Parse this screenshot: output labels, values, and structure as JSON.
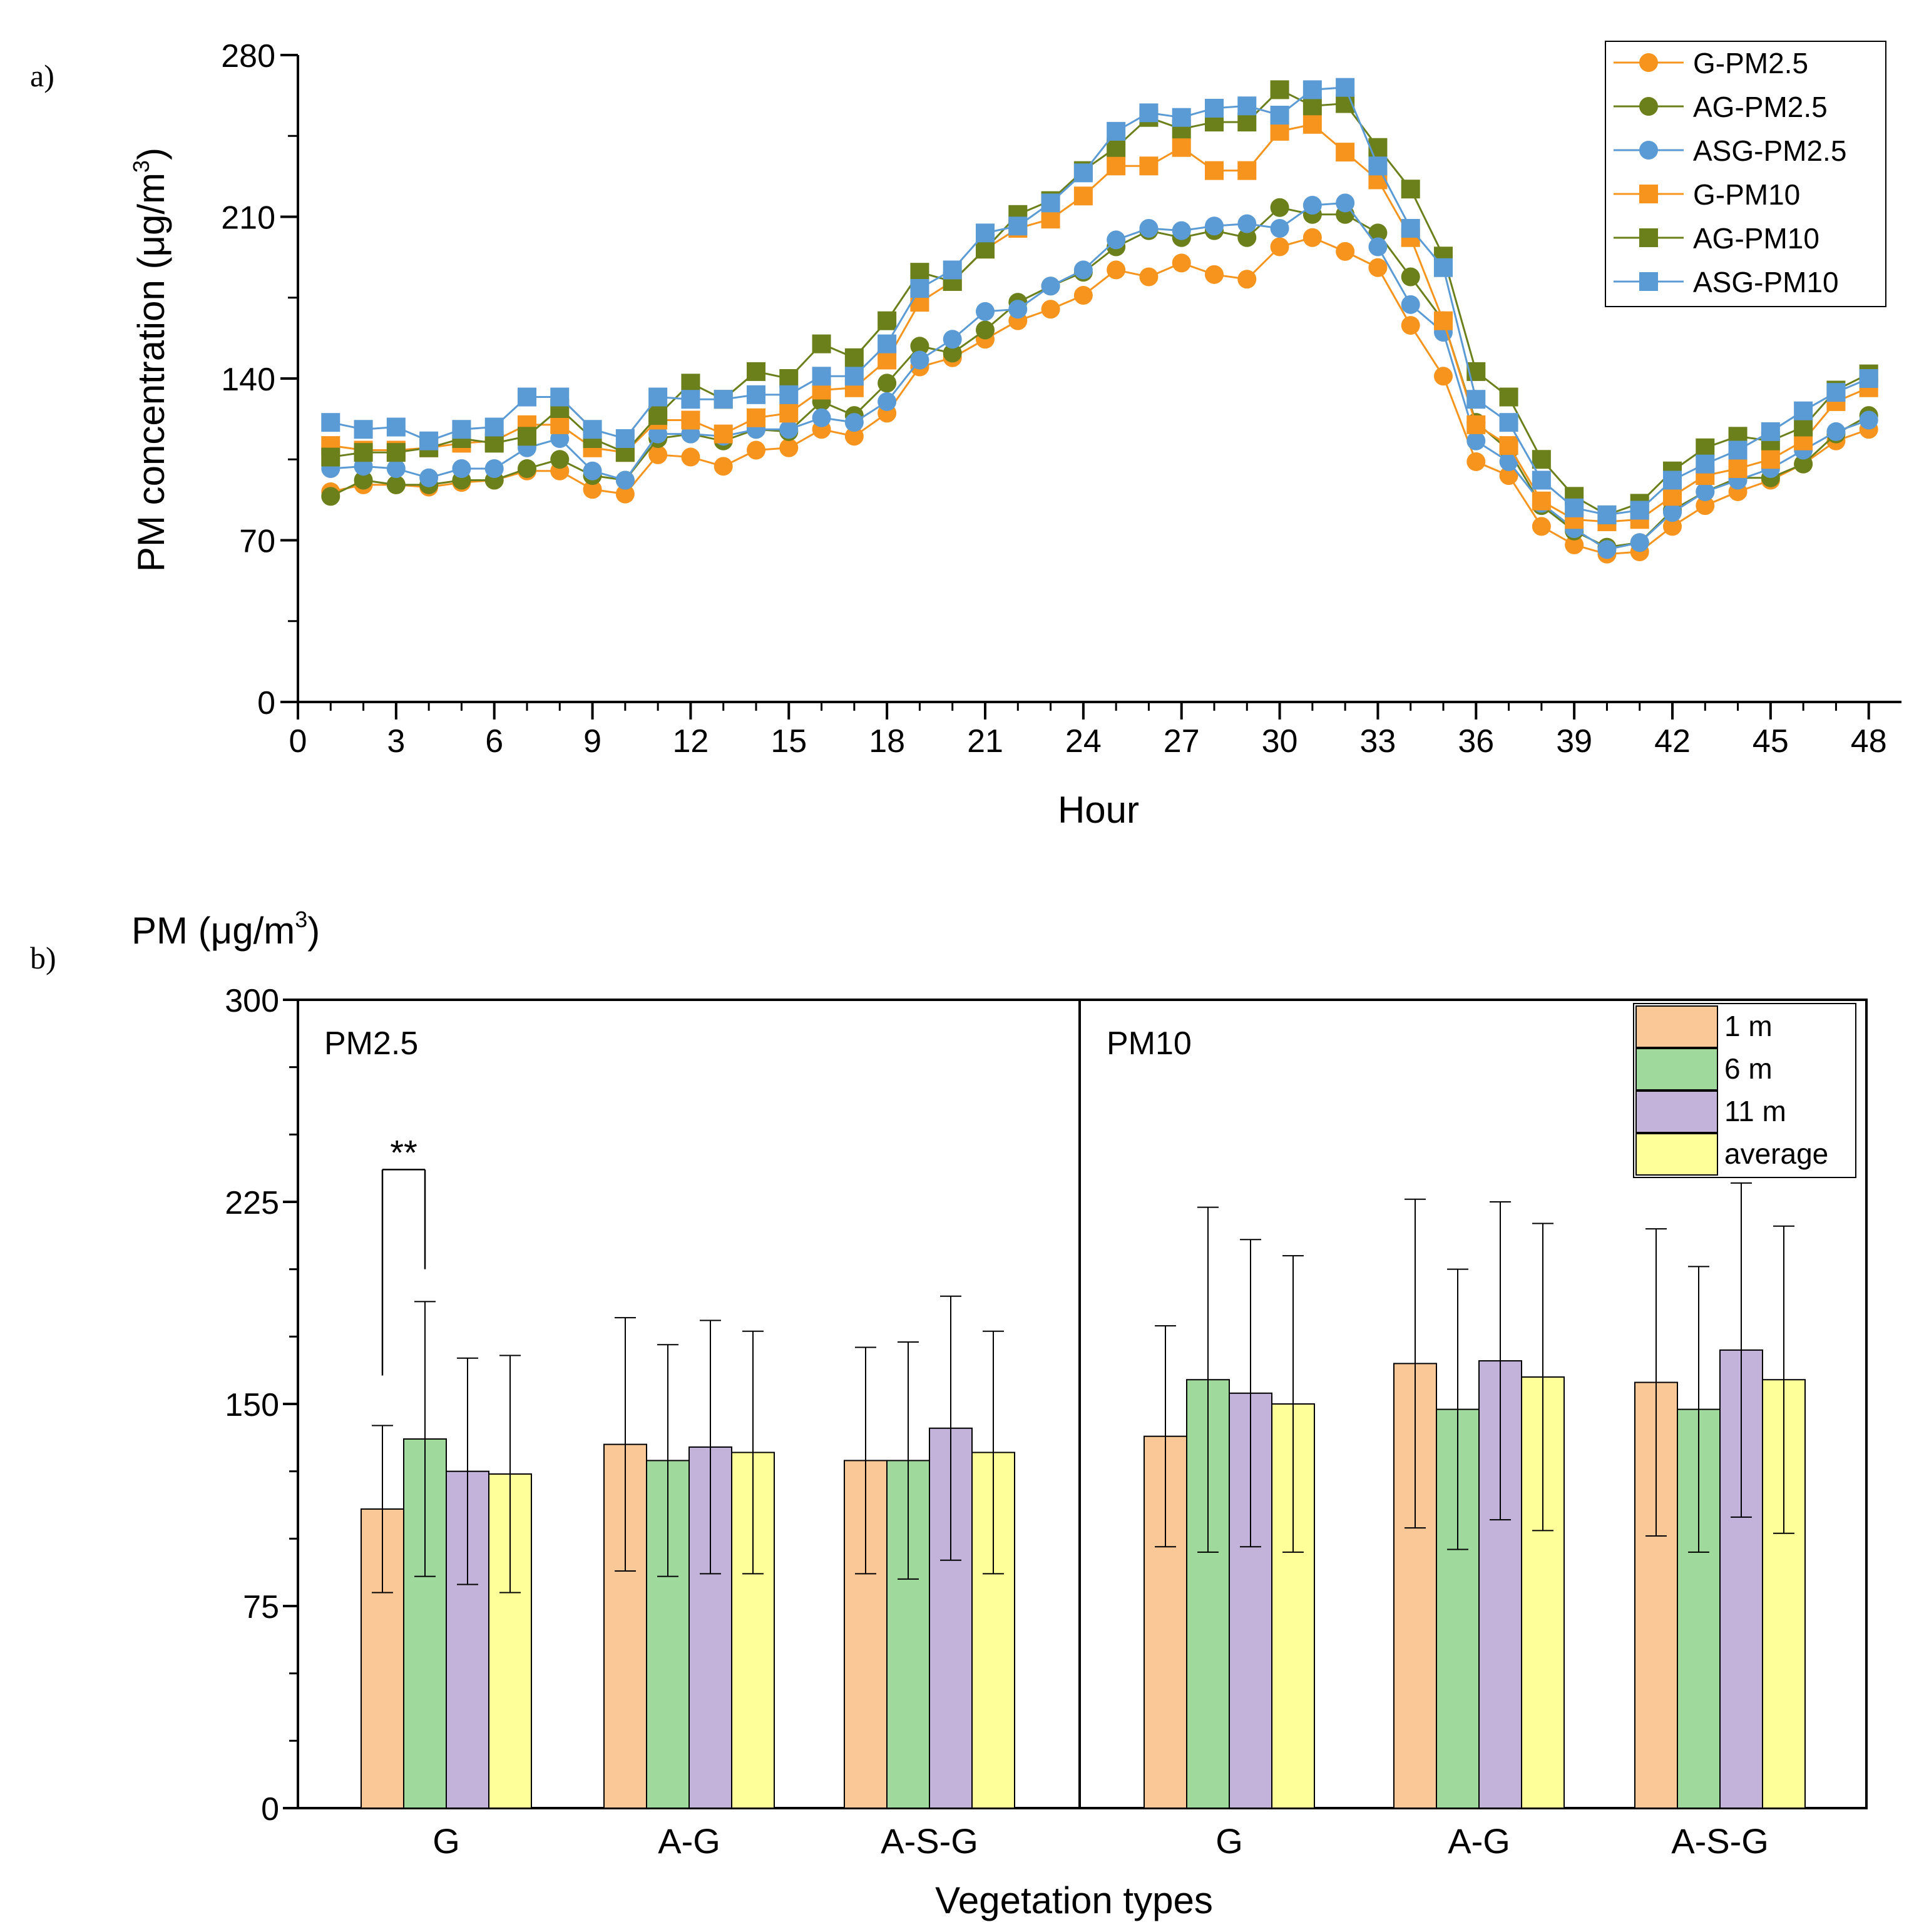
{
  "colors": {
    "orange": "#F7941D",
    "olive": "#6B7F1A",
    "blue": "#5B9BD5",
    "bar_1m": "#F9C896",
    "bar_6m": "#A0D99C",
    "bar_11m": "#C3B2D9",
    "bar_avg": "#FFFF99",
    "axis": "#000000"
  },
  "chart_data": [
    {
      "panel_label": "a)",
      "type": "line",
      "title": "",
      "xlabel": "Hour",
      "ylabel": "PM concentration (μg/m",
      "ylabel_sup": "3",
      "ylabel_close": ")",
      "xlim": [
        0,
        49
      ],
      "ylim": [
        0,
        280
      ],
      "xticks": [
        0,
        3,
        6,
        9,
        12,
        15,
        18,
        21,
        24,
        27,
        30,
        33,
        36,
        39,
        42,
        45,
        48
      ],
      "xtick_labels": [
        "0",
        "3",
        "6",
        "9",
        "12",
        "15",
        "18",
        "21",
        "24",
        "27",
        "30",
        "33",
        "36",
        "39",
        "42",
        "45",
        "48"
      ],
      "yticks": [
        0,
        70,
        140,
        210,
        280
      ],
      "ytick_labels": [
        "0",
        "70",
        "140",
        "210",
        "280"
      ],
      "legend_position": "top-right",
      "x": [
        1,
        2,
        3,
        4,
        5,
        6,
        7,
        8,
        9,
        10,
        11,
        12,
        13,
        14,
        15,
        16,
        17,
        18,
        19,
        20,
        21,
        22,
        23,
        24,
        25,
        26,
        27,
        28,
        29,
        30,
        31,
        32,
        33,
        34,
        35,
        36,
        37,
        38,
        39,
        40,
        41,
        42,
        43,
        44,
        45,
        46,
        47,
        48
      ],
      "series": [
        {
          "name": "G-PM2.5",
          "marker": "circle",
          "color": "orange",
          "values": [
            91,
            94,
            94,
            93,
            95,
            96,
            100,
            100,
            92,
            90,
            107,
            106,
            102,
            109,
            110,
            118,
            115,
            125,
            145,
            149,
            157,
            165,
            170,
            176,
            187,
            184,
            190,
            185,
            183,
            197,
            201,
            195,
            188,
            163,
            141,
            104,
            98,
            76,
            68,
            64,
            65,
            76,
            85,
            91,
            96,
            103,
            113,
            118
          ]
        },
        {
          "name": "AG-PM2.5",
          "marker": "circle",
          "color": "olive",
          "values": [
            89,
            96,
            94,
            94,
            96,
            96,
            101,
            105,
            98,
            96,
            114,
            116,
            113,
            118,
            117,
            130,
            124,
            138,
            154,
            151,
            161,
            173,
            180,
            186,
            197,
            204,
            201,
            204,
            201,
            214,
            211,
            211,
            203,
            184,
            165,
            121,
            109,
            85,
            74,
            67,
            69,
            83,
            91,
            97,
            97,
            103,
            116,
            124
          ]
        },
        {
          "name": "ASG-PM2.5",
          "marker": "circle",
          "color": "blue",
          "values": [
            101,
            102,
            101,
            97,
            101,
            101,
            110,
            114,
            100,
            96,
            116,
            116,
            115,
            118,
            118,
            123,
            121,
            130,
            148,
            157,
            169,
            170,
            180,
            187,
            200,
            205,
            204,
            206,
            207,
            205,
            215,
            216,
            197,
            172,
            160,
            113,
            104,
            86,
            75,
            66,
            69,
            82,
            91,
            96,
            101,
            109,
            117,
            122
          ]
        },
        {
          "name": "G-PM10",
          "marker": "square",
          "color": "orange",
          "values": [
            111,
            109,
            109,
            110,
            112,
            113,
            120,
            120,
            110,
            108,
            122,
            122,
            116,
            123,
            125,
            135,
            136,
            148,
            173,
            182,
            196,
            205,
            209,
            219,
            232,
            232,
            240,
            230,
            230,
            247,
            250,
            238,
            226,
            201,
            165,
            120,
            111,
            87,
            79,
            78,
            79,
            89,
            98,
            101,
            105,
            113,
            130,
            136
          ]
        },
        {
          "name": "AG-PM10",
          "marker": "square",
          "color": "olive",
          "values": [
            106,
            108,
            108,
            110,
            114,
            112,
            115,
            127,
            114,
            108,
            124,
            138,
            131,
            143,
            140,
            155,
            149,
            165,
            186,
            182,
            196,
            211,
            217,
            230,
            240,
            253,
            248,
            251,
            251,
            265,
            258,
            259,
            240,
            222,
            193,
            143,
            132,
            105,
            89,
            81,
            86,
            100,
            110,
            115,
            113,
            119,
            135,
            142
          ]
        },
        {
          "name": "ASG-PM10",
          "marker": "square",
          "color": "blue",
          "values": [
            121,
            118,
            119,
            113,
            118,
            119,
            132,
            132,
            118,
            114,
            132,
            131,
            131,
            133,
            133,
            141,
            141,
            155,
            179,
            187,
            203,
            206,
            216,
            229,
            247,
            255,
            253,
            257,
            258,
            254,
            265,
            266,
            232,
            205,
            188,
            131,
            121,
            96,
            84,
            81,
            83,
            96,
            103,
            109,
            117,
            126,
            134,
            140
          ]
        }
      ]
    },
    {
      "panel_label": "b)",
      "type": "bar",
      "title": "",
      "xlabel": "Vegetation types",
      "ylabel": "PM (μg/m",
      "ylabel_sup": "3",
      "ylabel_close": ")",
      "ylim": [
        0,
        300
      ],
      "yticks": [
        0,
        75,
        150,
        225,
        300
      ],
      "ytick_labels": [
        "0",
        "75",
        "150",
        "225",
        "300"
      ],
      "legend_position": "top-right",
      "legend": [
        "1 m",
        "6 m",
        "11 m",
        "average"
      ],
      "panels": [
        {
          "name": "PM2.5",
          "categories": [
            "G",
            "A-G",
            "A-S-G"
          ],
          "series": [
            {
              "name": "1 m",
              "values": [
                111,
                135,
                129
              ],
              "errors": [
                31,
                47,
                42
              ]
            },
            {
              "name": "6 m",
              "values": [
                137,
                129,
                129
              ],
              "errors": [
                51,
                43,
                44
              ]
            },
            {
              "name": "11 m",
              "values": [
                125,
                134,
                141
              ],
              "errors": [
                42,
                47,
                49
              ]
            },
            {
              "name": "average",
              "values": [
                124,
                132,
                132
              ],
              "errors": [
                44,
                45,
                45
              ]
            }
          ],
          "annotation": {
            "text": "**",
            "between": [
              "1 m",
              "6 m"
            ],
            "category": "G",
            "level": 237
          }
        },
        {
          "name": "PM10",
          "categories": [
            "G",
            "A-G",
            "A-S-G"
          ],
          "series": [
            {
              "name": "1 m",
              "values": [
                138,
                165,
                158
              ],
              "errors": [
                41,
                61,
                57
              ]
            },
            {
              "name": "6 m",
              "values": [
                159,
                148,
                148
              ],
              "errors": [
                64,
                52,
                53
              ]
            },
            {
              "name": "11 m",
              "values": [
                154,
                166,
                170
              ],
              "errors": [
                57,
                59,
                62
              ]
            },
            {
              "name": "average",
              "values": [
                150,
                160,
                159
              ],
              "errors": [
                55,
                57,
                57
              ]
            }
          ]
        }
      ]
    }
  ]
}
